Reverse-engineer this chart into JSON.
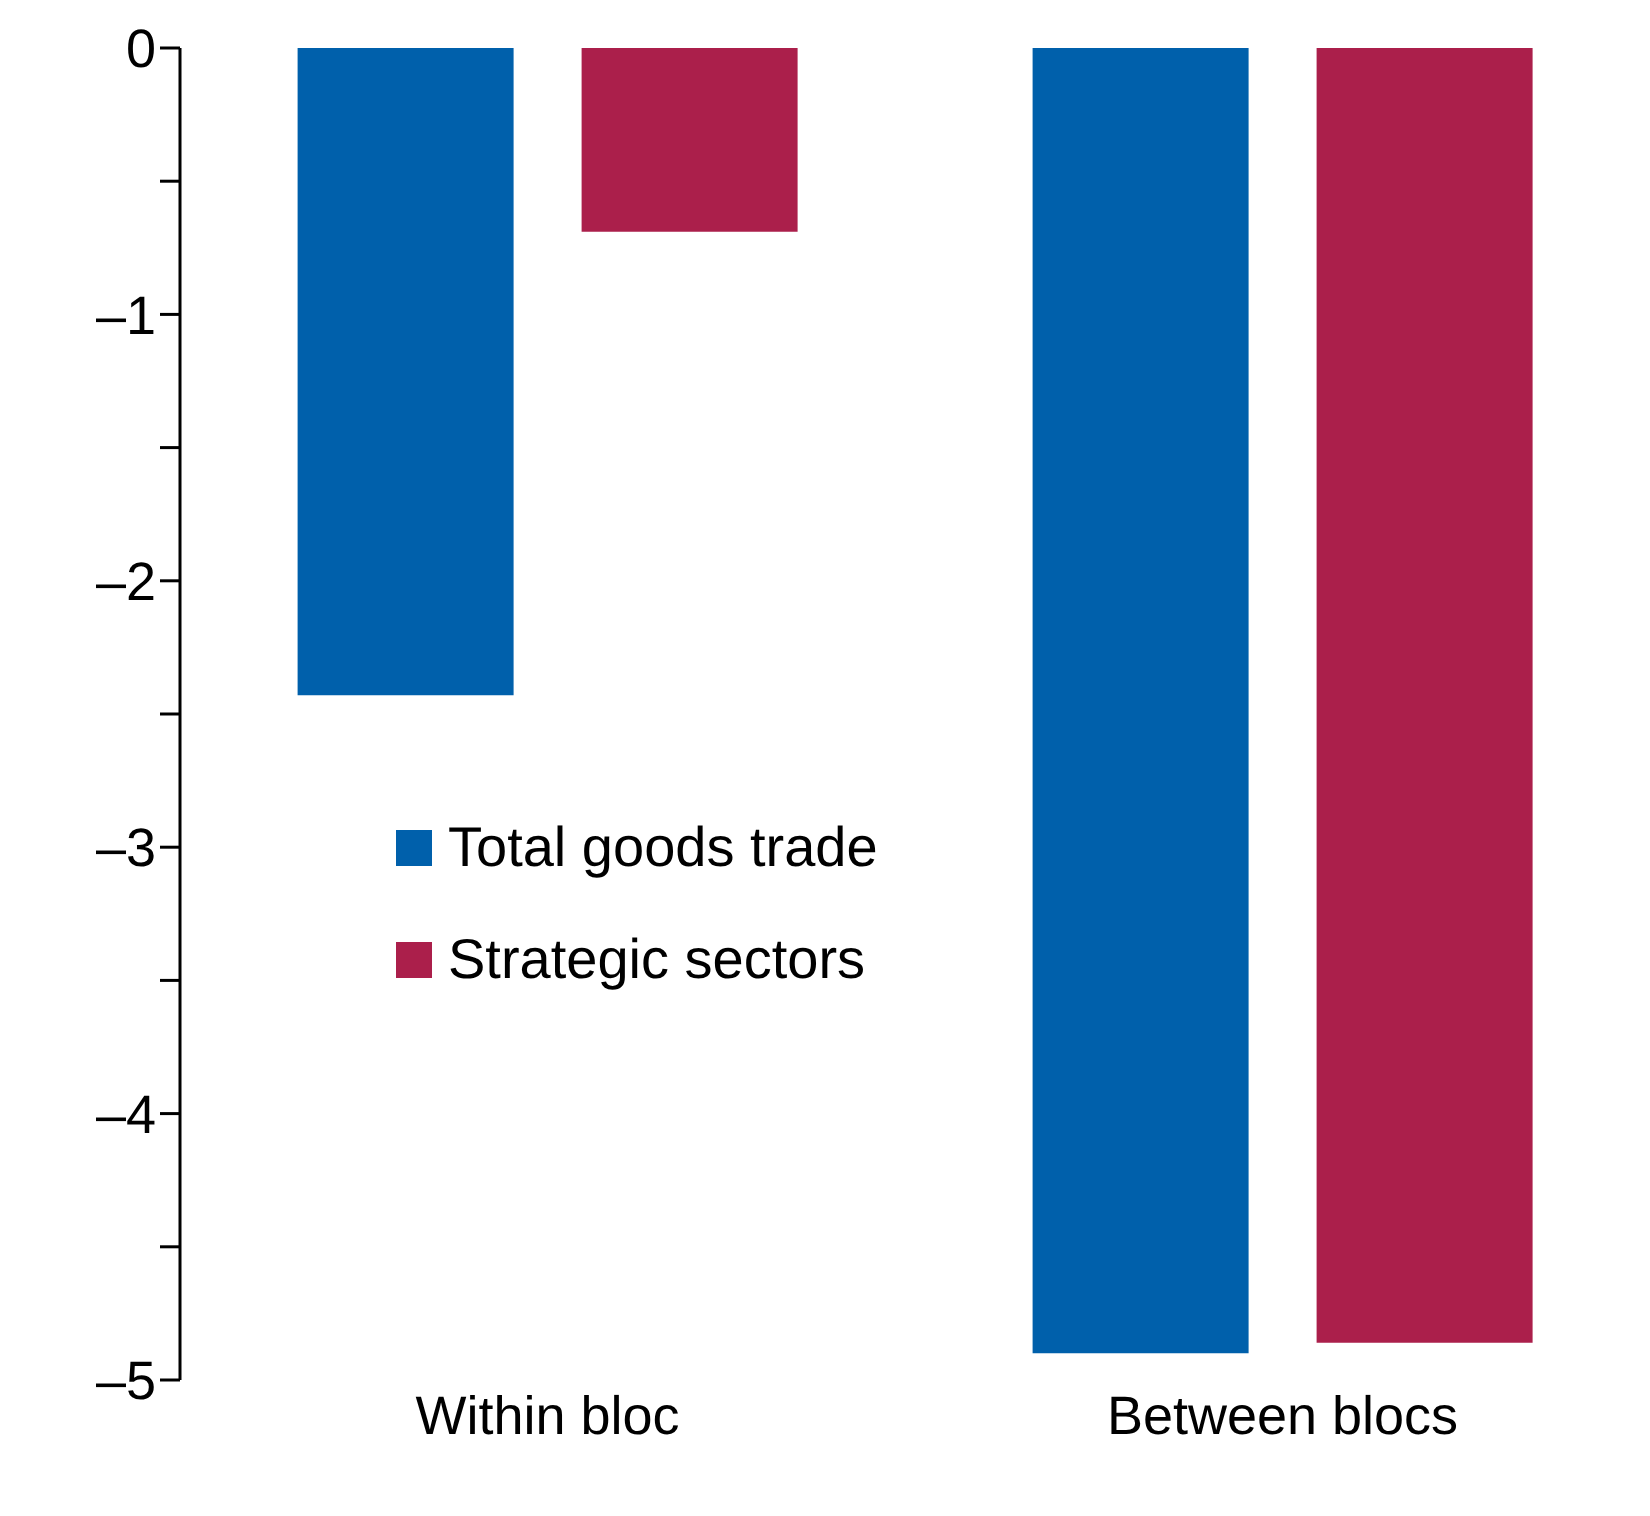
{
  "chart_data": {
    "type": "bar",
    "categories": [
      "Within bloc",
      "Between blocs"
    ],
    "series": [
      {
        "name": "Total goods trade",
        "color": "#0060ab",
        "values": [
          -2.43,
          -4.9
        ]
      },
      {
        "name": "Strategic sectors",
        "color": "#ab1f4b",
        "values": [
          -0.69,
          -4.86
        ]
      }
    ],
    "ylim": [
      -5,
      0
    ],
    "yticks": [
      {
        "value": -5,
        "label": "–5"
      },
      {
        "value": -4.5,
        "label": null
      },
      {
        "value": -4,
        "label": "–4"
      },
      {
        "value": -3.5,
        "label": null
      },
      {
        "value": -3,
        "label": "–3"
      },
      {
        "value": -2.5,
        "label": null
      },
      {
        "value": -2,
        "label": "–2"
      },
      {
        "value": -1.5,
        "label": null
      },
      {
        "value": -1,
        "label": "–1"
      },
      {
        "value": -0.5,
        "label": null
      },
      0
    ],
    "grid": false,
    "legend": "left"
  }
}
